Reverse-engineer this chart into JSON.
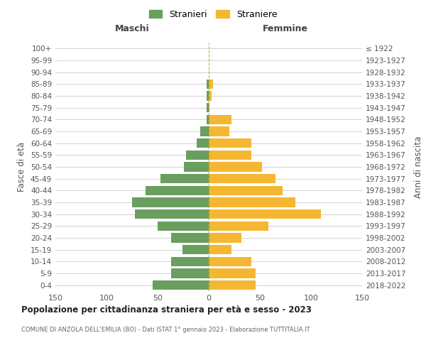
{
  "age_groups": [
    "0-4",
    "5-9",
    "10-14",
    "15-19",
    "20-24",
    "25-29",
    "30-34",
    "35-39",
    "40-44",
    "45-49",
    "50-54",
    "55-59",
    "60-64",
    "65-69",
    "70-74",
    "75-79",
    "80-84",
    "85-89",
    "90-94",
    "95-99",
    "100+"
  ],
  "birth_years": [
    "2018-2022",
    "2013-2017",
    "2008-2012",
    "2003-2007",
    "1998-2002",
    "1993-1997",
    "1988-1992",
    "1983-1987",
    "1978-1982",
    "1973-1977",
    "1968-1972",
    "1963-1967",
    "1958-1962",
    "1953-1957",
    "1948-1952",
    "1943-1947",
    "1938-1942",
    "1933-1937",
    "1928-1932",
    "1923-1927",
    "≤ 1922"
  ],
  "males": [
    55,
    37,
    37,
    26,
    37,
    50,
    72,
    75,
    62,
    47,
    24,
    22,
    12,
    8,
    2,
    2,
    2,
    2,
    0,
    0,
    0
  ],
  "females": [
    46,
    46,
    42,
    22,
    32,
    58,
    110,
    85,
    72,
    65,
    52,
    42,
    42,
    20,
    22,
    1,
    3,
    4,
    0,
    0,
    0
  ],
  "male_color": "#6a9e5f",
  "female_color": "#f5b731",
  "title": "Popolazione per cittadinanza straniera per età e sesso - 2023",
  "subtitle": "COMUNE DI ANZOLA DELL'EMILIA (BO) - Dati ISTAT 1° gennaio 2023 - Elaborazione TUTTITALIA.IT",
  "ylabel_left": "Fasce di età",
  "ylabel_right": "Anni di nascita",
  "xlabel_left": "Maschi",
  "xlabel_right": "Femmine",
  "legend_male": "Stranieri",
  "legend_female": "Straniere",
  "xlim": 150,
  "background_color": "#ffffff",
  "grid_color": "#cccccc",
  "bar_height": 0.8
}
